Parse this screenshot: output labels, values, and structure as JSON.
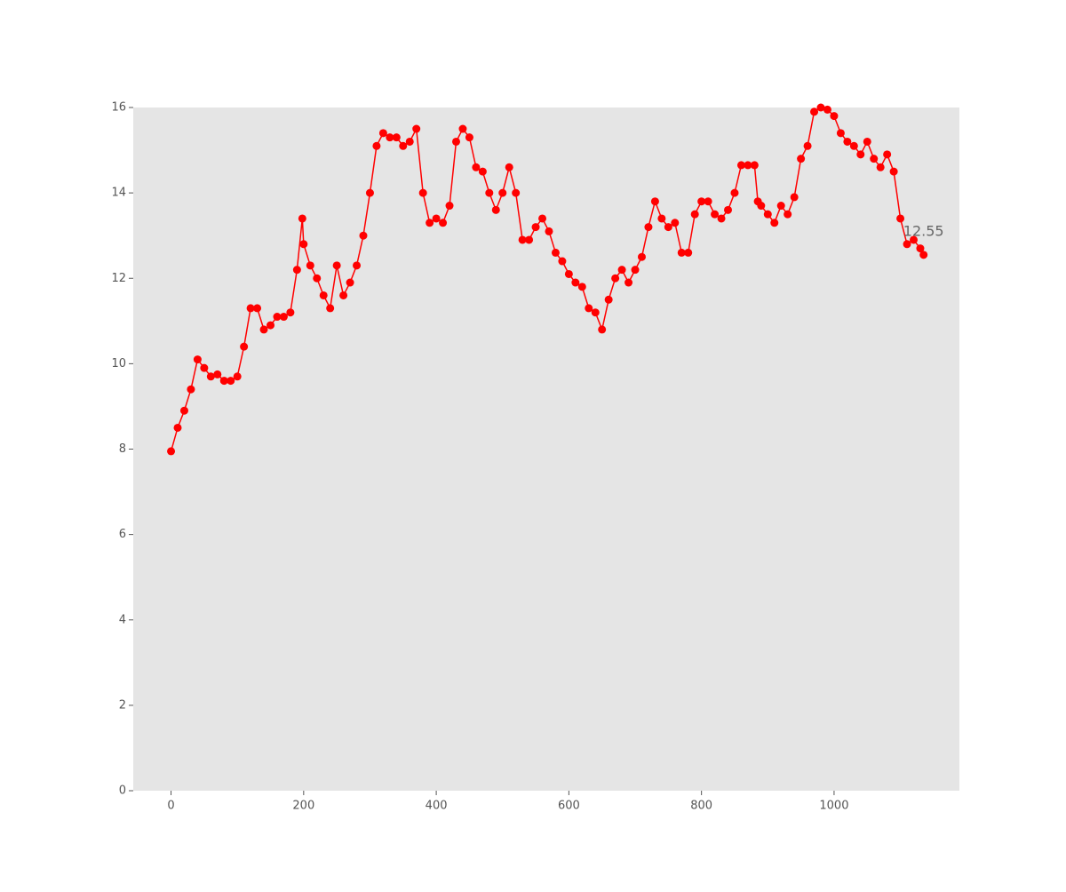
{
  "chart_data": {
    "type": "line",
    "x": [
      0,
      10,
      20,
      30,
      40,
      50,
      60,
      70,
      80,
      90,
      100,
      110,
      120,
      130,
      140,
      150,
      160,
      170,
      180,
      190,
      198,
      200,
      210,
      220,
      230,
      240,
      250,
      260,
      270,
      280,
      290,
      300,
      310,
      320,
      330,
      340,
      350,
      360,
      370,
      380,
      390,
      400,
      410,
      420,
      430,
      440,
      450,
      460,
      470,
      480,
      490,
      500,
      510,
      520,
      530,
      540,
      550,
      560,
      570,
      580,
      590,
      600,
      610,
      620,
      630,
      640,
      650,
      660,
      670,
      680,
      690,
      700,
      710,
      720,
      730,
      740,
      750,
      760,
      770,
      780,
      790,
      800,
      810,
      820,
      830,
      840,
      850,
      860,
      870,
      880,
      885,
      890,
      900,
      910,
      920,
      930,
      940,
      950,
      960,
      970,
      980,
      990,
      1000,
      1010,
      1020,
      1030,
      1040,
      1050,
      1060,
      1070,
      1080,
      1090,
      1100,
      1110,
      1120,
      1130,
      1135
    ],
    "series": [
      {
        "color": "#ff0000",
        "values": [
          7.95,
          8.5,
          8.9,
          9.4,
          10.1,
          9.9,
          9.7,
          9.75,
          9.6,
          9.6,
          9.7,
          10.4,
          11.3,
          11.3,
          10.8,
          10.9,
          11.1,
          11.1,
          11.2,
          12.2,
          13.4,
          12.8,
          12.3,
          12.0,
          11.6,
          11.3,
          12.3,
          11.6,
          11.9,
          12.3,
          13.0,
          14.0,
          15.1,
          15.4,
          15.3,
          15.3,
          15.1,
          15.2,
          15.5,
          14.0,
          13.3,
          13.4,
          13.3,
          13.7,
          15.2,
          15.5,
          15.3,
          14.6,
          14.5,
          14.0,
          13.6,
          14.0,
          14.6,
          14.0,
          12.9,
          12.9,
          13.2,
          13.4,
          13.1,
          12.6,
          12.4,
          12.1,
          11.9,
          11.8,
          11.3,
          11.2,
          10.8,
          11.5,
          12.0,
          12.2,
          11.9,
          12.2,
          12.5,
          13.2,
          13.8,
          13.4,
          13.2,
          13.3,
          12.6,
          12.6,
          13.5,
          13.8,
          13.8,
          13.5,
          13.4,
          13.6,
          14.0,
          14.65,
          14.65,
          14.65,
          13.8,
          13.7,
          13.5,
          13.3,
          13.7,
          13.5,
          13.9,
          14.8,
          15.1,
          15.9,
          16.0,
          15.95,
          15.8,
          15.4,
          15.2,
          15.1,
          14.9,
          15.2,
          14.8,
          14.6,
          14.9,
          14.5,
          13.4,
          12.8,
          12.9,
          12.7,
          12.55
        ]
      }
    ],
    "annotation": "12.55",
    "xlim": [
      -57,
      1189
    ],
    "xticks": [
      0,
      200,
      400,
      600,
      800,
      1000
    ],
    "ylim": [
      0,
      16
    ],
    "yticks": [
      0,
      2,
      4,
      6,
      8,
      10,
      12,
      14,
      16
    ],
    "grid": false,
    "background": "#e5e5e5"
  }
}
